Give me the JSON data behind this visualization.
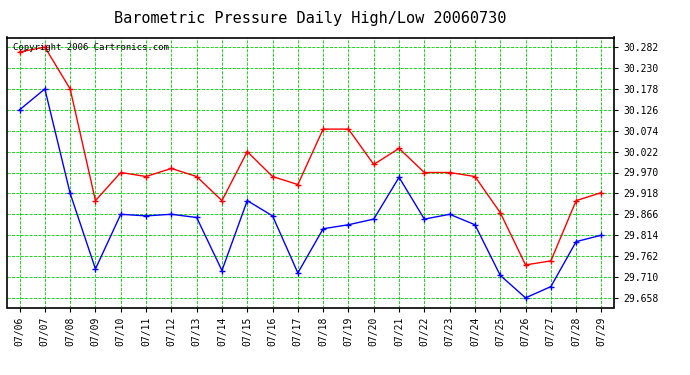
{
  "title": "Barometric Pressure Daily High/Low 20060730",
  "copyright": "Copyright 2006 Cartronics.com",
  "dates": [
    "07/06",
    "07/07",
    "07/08",
    "07/09",
    "07/10",
    "07/11",
    "07/12",
    "07/13",
    "07/14",
    "07/15",
    "07/16",
    "07/17",
    "07/18",
    "07/19",
    "07/20",
    "07/21",
    "07/22",
    "07/23",
    "07/24",
    "07/25",
    "07/26",
    "07/27",
    "07/28",
    "07/29"
  ],
  "high": [
    30.27,
    30.282,
    30.178,
    29.9,
    29.97,
    29.96,
    29.98,
    29.96,
    29.9,
    30.022,
    29.96,
    29.94,
    30.078,
    30.078,
    29.99,
    30.03,
    29.97,
    29.97,
    29.96,
    29.87,
    29.74,
    29.75,
    29.9,
    29.92
  ],
  "low": [
    30.126,
    30.178,
    29.918,
    29.73,
    29.866,
    29.862,
    29.866,
    29.858,
    29.726,
    29.9,
    29.862,
    29.72,
    29.83,
    29.84,
    29.854,
    29.958,
    29.854,
    29.866,
    29.84,
    29.714,
    29.658,
    29.686,
    29.798,
    29.814
  ],
  "ylim_min": 29.634,
  "ylim_max": 30.306,
  "yticks": [
    29.658,
    29.71,
    29.762,
    29.814,
    29.866,
    29.918,
    29.97,
    30.022,
    30.074,
    30.126,
    30.178,
    30.23,
    30.282
  ],
  "high_color": "#FF0000",
  "low_color": "#0000FF",
  "grid_color": "#00CC00",
  "bg_color": "#FFFFFF",
  "title_fontsize": 11,
  "tick_fontsize": 7,
  "copyright_fontsize": 6.5
}
